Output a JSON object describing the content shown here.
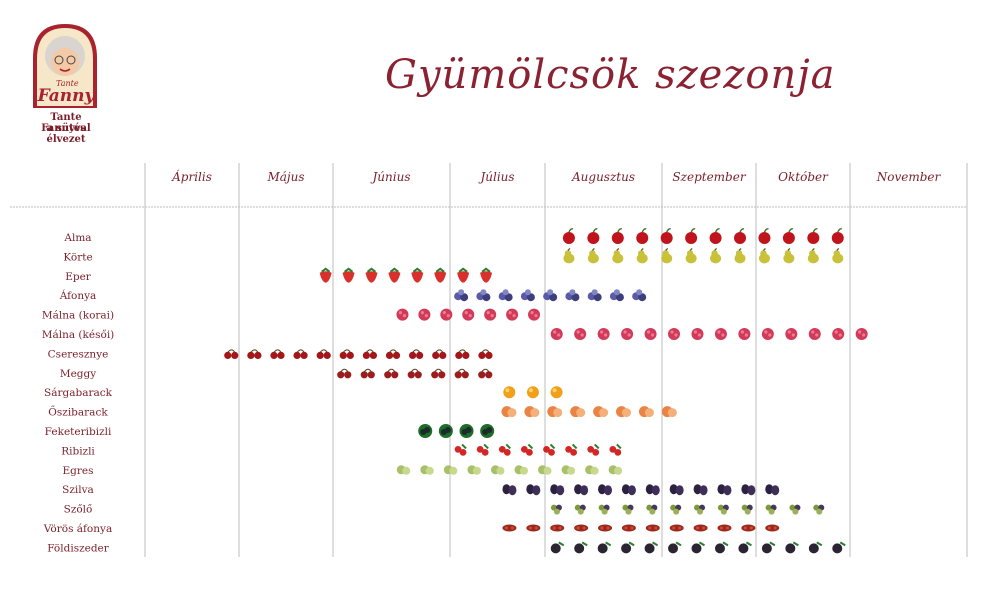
{
  "logo": {
    "badge_text_top": "Tante",
    "badge_text_main": "Fanny",
    "tagline_1": "Tante Fannyval",
    "tagline_2": "a sütés élvezet"
  },
  "title": "Gyümölcsök szezonja",
  "colors": {
    "title": "#8b2231",
    "labels": "#7a1f2a",
    "grid": "#bdbdbd",
    "logo_red": "#a8232e",
    "logo_cream": "#f6e7c8"
  },
  "chart_data": {
    "type": "table",
    "columns": [
      "Április",
      "Május",
      "Június",
      "Július",
      "Augusztus",
      "Szeptember",
      "Október",
      "November"
    ],
    "rows": [
      {
        "name": "Alma",
        "icon": "apple-icon",
        "start": 4.1,
        "end": 7.0
      },
      {
        "name": "Körte",
        "icon": "pear-icon",
        "start": 4.1,
        "end": 7.0
      },
      {
        "name": "Eper",
        "icon": "strawberry-icon",
        "start": 1.8,
        "end": 3.5
      },
      {
        "name": "Áfonya",
        "icon": "blueberry-icon",
        "start": 3.0,
        "end": 4.9
      },
      {
        "name": "Málna (korai)",
        "icon": "raspberry-icon",
        "start": 2.5,
        "end": 4.0
      },
      {
        "name": "Málna (késői)",
        "icon": "raspberry-icon",
        "start": 4.0,
        "end": 7.2
      },
      {
        "name": "Cseresznye",
        "icon": "cherry-icon",
        "start": 0.8,
        "end": 3.5
      },
      {
        "name": "Meggy",
        "icon": "sour-cherry-icon",
        "start": 2.0,
        "end": 3.5
      },
      {
        "name": "Sárgabarack",
        "icon": "apricot-icon",
        "start": 3.5,
        "end": 4.2
      },
      {
        "name": "Őszibarack",
        "icon": "peach-icon",
        "start": 3.5,
        "end": 5.2
      },
      {
        "name": "Feketeribizli",
        "icon": "blackcurrant-icon",
        "start": 2.7,
        "end": 3.5
      },
      {
        "name": "Ribizli",
        "icon": "redcurrant-icon",
        "start": 3.0,
        "end": 4.7
      },
      {
        "name": "Egres",
        "icon": "gooseberry-icon",
        "start": 2.5,
        "end": 4.7
      },
      {
        "name": "Szilva",
        "icon": "plum-icon",
        "start": 3.5,
        "end": 6.3
      },
      {
        "name": "Szőlő",
        "icon": "grape-icon",
        "start": 4.0,
        "end": 6.8
      },
      {
        "name": "Vörös áfonya",
        "icon": "cranberry-icon",
        "start": 3.5,
        "end": 6.3
      },
      {
        "name": "Földiszeder",
        "icon": "blackberry-icon",
        "start": 4.0,
        "end": 7.0
      }
    ]
  }
}
